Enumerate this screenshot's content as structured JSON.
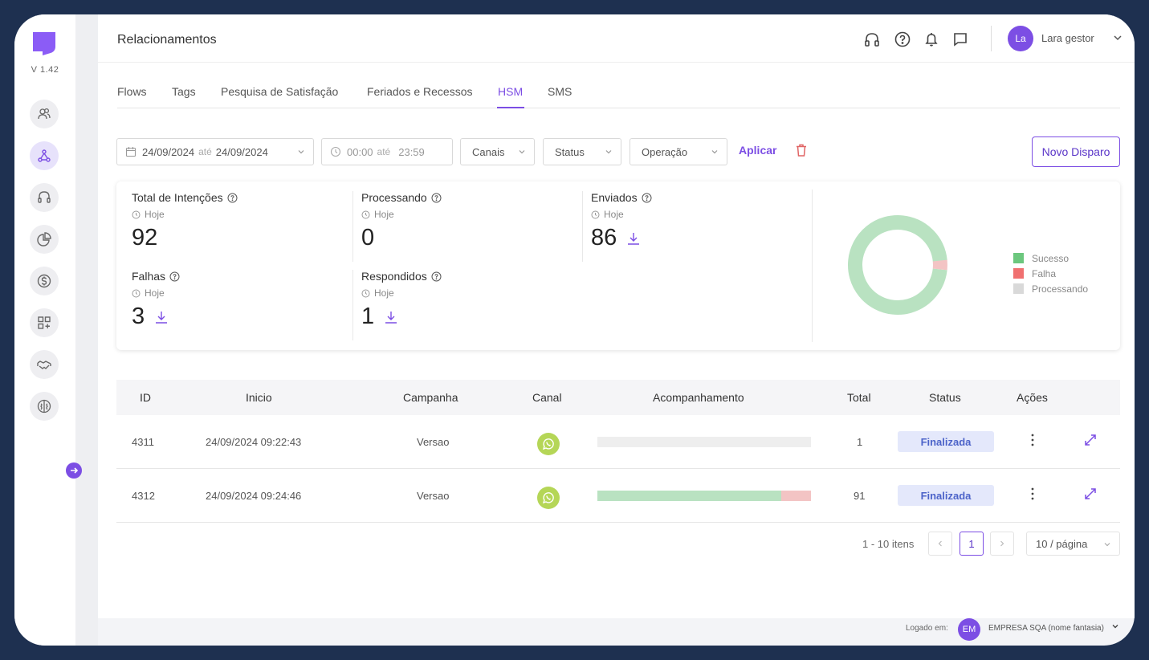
{
  "app": {
    "version": "V 1.42",
    "page_title": "Relacionamentos"
  },
  "sidebar": {
    "items": [
      {
        "name": "users-icon"
      },
      {
        "name": "network-icon",
        "active": true
      },
      {
        "name": "headset-icon"
      },
      {
        "name": "pie-chart-icon"
      },
      {
        "name": "dollar-icon"
      },
      {
        "name": "apps-add-icon"
      },
      {
        "name": "handshake-icon"
      },
      {
        "name": "brain-icon"
      }
    ]
  },
  "user": {
    "initials": "La",
    "name": "Lara gestor"
  },
  "tabs": [
    "Flows",
    "Tags",
    "Pesquisa de Satisfação",
    "Feriados e Recessos",
    "HSM",
    "SMS"
  ],
  "active_tab": "HSM",
  "filters": {
    "date_from": "24/09/2024",
    "date_sep": "até",
    "date_to": "24/09/2024",
    "time_from": "00:00",
    "time_sep": "até",
    "time_to": "23:59",
    "canais": "Canais",
    "status": "Status",
    "operacao": "Operação",
    "apply": "Aplicar",
    "new_dispatch": "Novo Disparo"
  },
  "stats": {
    "total": {
      "label": "Total de Intenções",
      "period": "Hoje",
      "value": "92"
    },
    "processando": {
      "label": "Processando",
      "period": "Hoje",
      "value": "0"
    },
    "enviados": {
      "label": "Enviados",
      "period": "Hoje",
      "value": "86"
    },
    "falhas": {
      "label": "Falhas",
      "period": "Hoje",
      "value": "3"
    },
    "respondidos": {
      "label": "Respondidos",
      "period": "Hoje",
      "value": "1"
    }
  },
  "donut": {
    "legend": [
      {
        "label": "Sucesso",
        "color": "#6cc77e"
      },
      {
        "label": "Falha",
        "color": "#f07070"
      },
      {
        "label": "Processando",
        "color": "#d9d9d9"
      }
    ],
    "colors": {
      "success": "#b9e2c1",
      "fail": "#f3c4c4"
    },
    "fail_fraction": 0.033
  },
  "table": {
    "headers": [
      "ID",
      "Inicio",
      "Campanha",
      "Canal",
      "Acompanhamento",
      "Total",
      "Status",
      "Ações"
    ],
    "rows": [
      {
        "id": "4311",
        "inicio": "24/09/2024 09:22:43",
        "campanha": "Versao",
        "total": "1",
        "status": "Finalizada",
        "progress_success": 0,
        "progress_fail": 0
      },
      {
        "id": "4312",
        "inicio": "24/09/2024 09:24:46",
        "campanha": "Versao",
        "total": "91",
        "status": "Finalizada",
        "progress_success": 0.86,
        "progress_fail": 0.14
      }
    ]
  },
  "pagination": {
    "summary": "1 - 10 itens",
    "current_page": "1",
    "page_size": "10 / página"
  },
  "footer": {
    "label": "Logado em:",
    "initials": "EM",
    "company": "EMPRESA SQA (nome fantasia)"
  }
}
